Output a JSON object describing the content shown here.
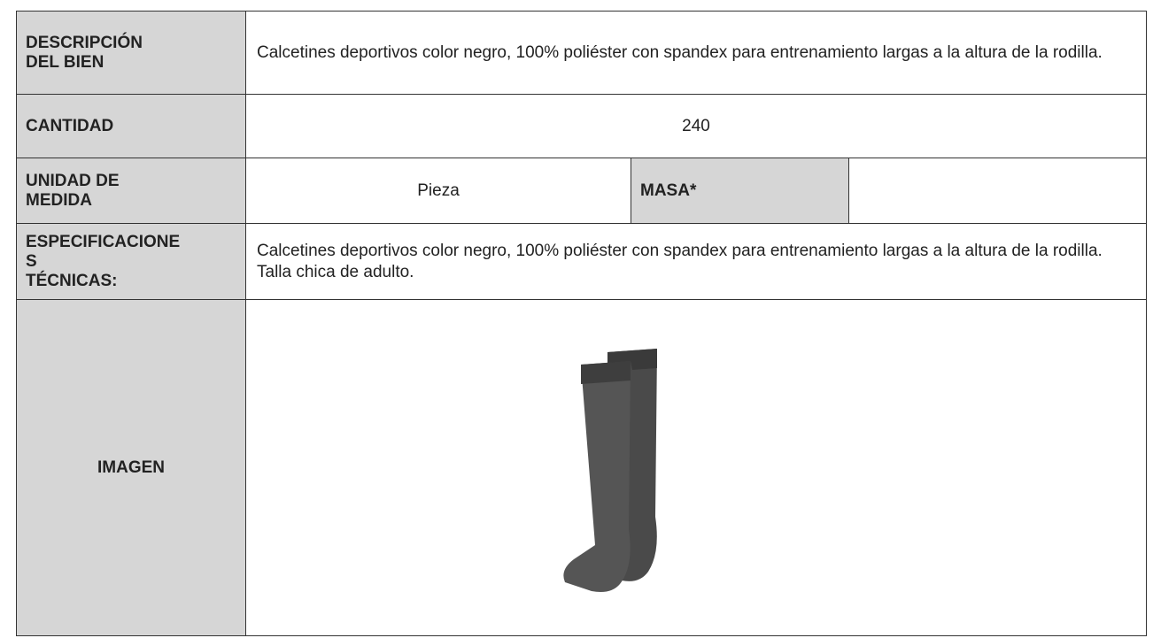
{
  "rows": [
    {
      "label": "DESCRIPCIÓN\nDEL BIEN",
      "value": "Calcetines deportivos color negro, 100% poliéster con spandex para entrenamiento largas a la altura de la rodilla."
    },
    {
      "label": "CANTIDAD",
      "value": "240"
    },
    {
      "label": "UNIDAD DE\nMEDIDA",
      "value": "Pieza",
      "extra_label": "MASA*"
    },
    {
      "label": "ESPECIFICACIONE\nS\nTÉCNICAS:",
      "value": "Calcetines deportivos color negro, 100% poliéster con spandex para entrenamiento largas a la altura de la rodilla. Talla chica de adulto."
    },
    {
      "label": "IMAGEN"
    }
  ]
}
